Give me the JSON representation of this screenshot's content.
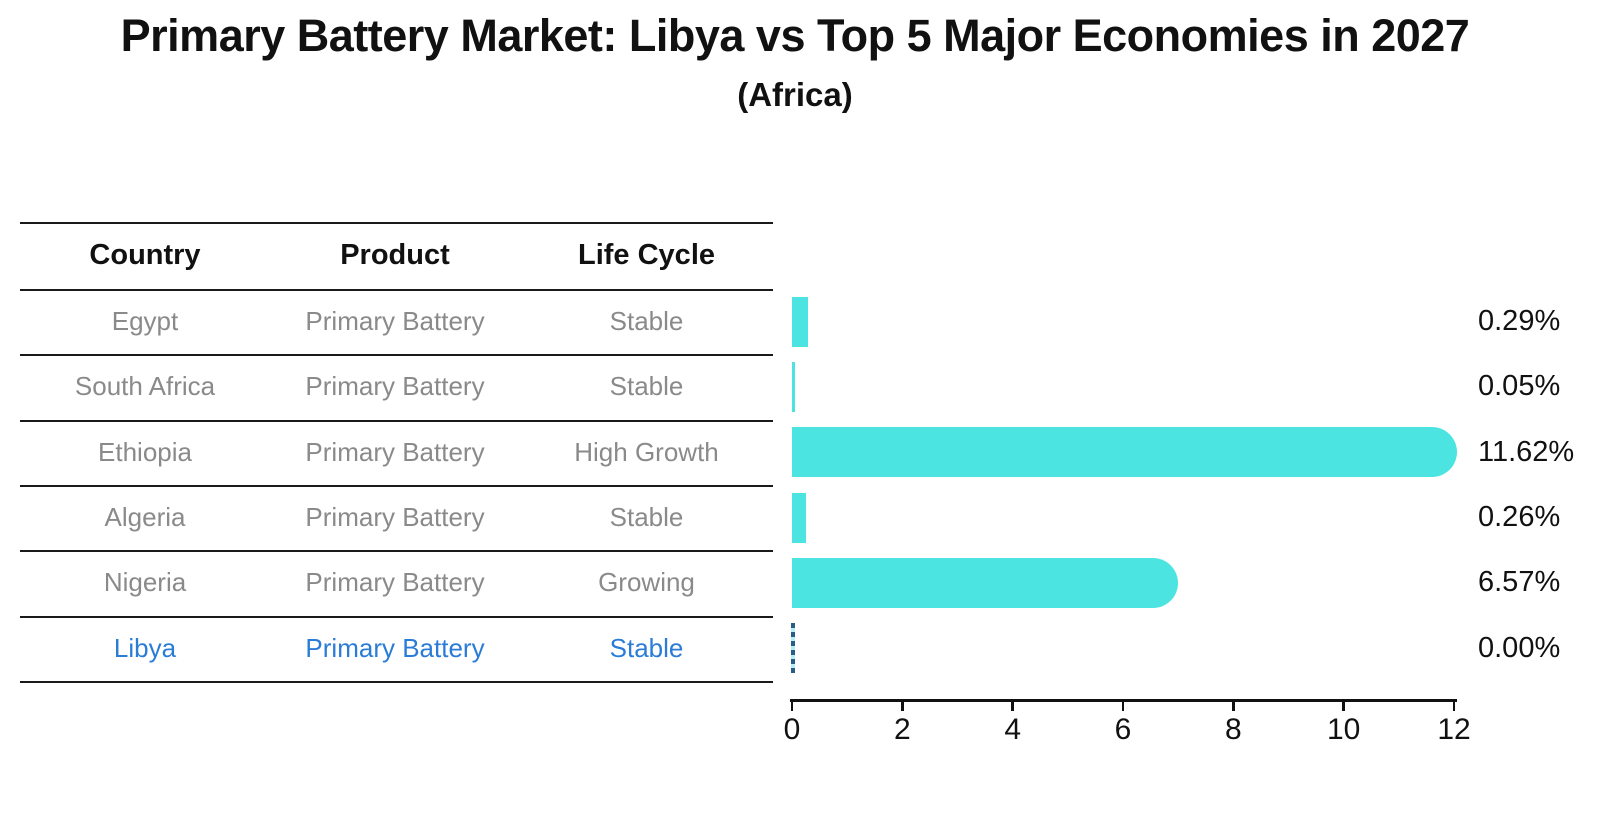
{
  "title": "Primary Battery Market: Libya vs Top 5 Major Economies in 2027",
  "subtitle": "(Africa)",
  "table": {
    "headers": [
      "Country",
      "Product",
      "Life Cycle"
    ],
    "rows": [
      {
        "country": "Egypt",
        "product": "Primary Battery",
        "life_cycle": "Stable",
        "highlight": false
      },
      {
        "country": "South Africa",
        "product": "Primary Battery",
        "life_cycle": "Stable",
        "highlight": false
      },
      {
        "country": "Ethiopia",
        "product": "Primary Battery",
        "life_cycle": "High Growth",
        "highlight": false
      },
      {
        "country": "Algeria",
        "product": "Primary Battery",
        "life_cycle": "Stable",
        "highlight": false
      },
      {
        "country": "Nigeria",
        "product": "Primary Battery",
        "life_cycle": "Growing",
        "highlight": false
      },
      {
        "country": "Libya",
        "product": "Primary Battery",
        "life_cycle": "Stable",
        "highlight": true
      }
    ]
  },
  "chart_data": {
    "type": "bar",
    "orientation": "horizontal",
    "categories": [
      "Egypt",
      "South Africa",
      "Ethiopia",
      "Algeria",
      "Nigeria",
      "Libya"
    ],
    "values": [
      0.29,
      0.05,
      11.62,
      0.26,
      6.57,
      0.0
    ],
    "value_labels": [
      "0.29%",
      "0.05%",
      "11.62%",
      "0.26%",
      "6.57%",
      "0.00%"
    ],
    "x_ticks": [
      0,
      2,
      4,
      6,
      8,
      10,
      12
    ],
    "xlim": [
      0,
      12
    ],
    "grid": false,
    "legend": false,
    "zero_value_marker": "dashed-line-at-zero",
    "highlighted_category": "Libya"
  },
  "colors": {
    "bar": "#4BE4E0",
    "highlight_text": "#2b7cd6",
    "cell_text": "#8a8a8a",
    "axis": "#111111",
    "zero_dash": "#2b5c88"
  }
}
